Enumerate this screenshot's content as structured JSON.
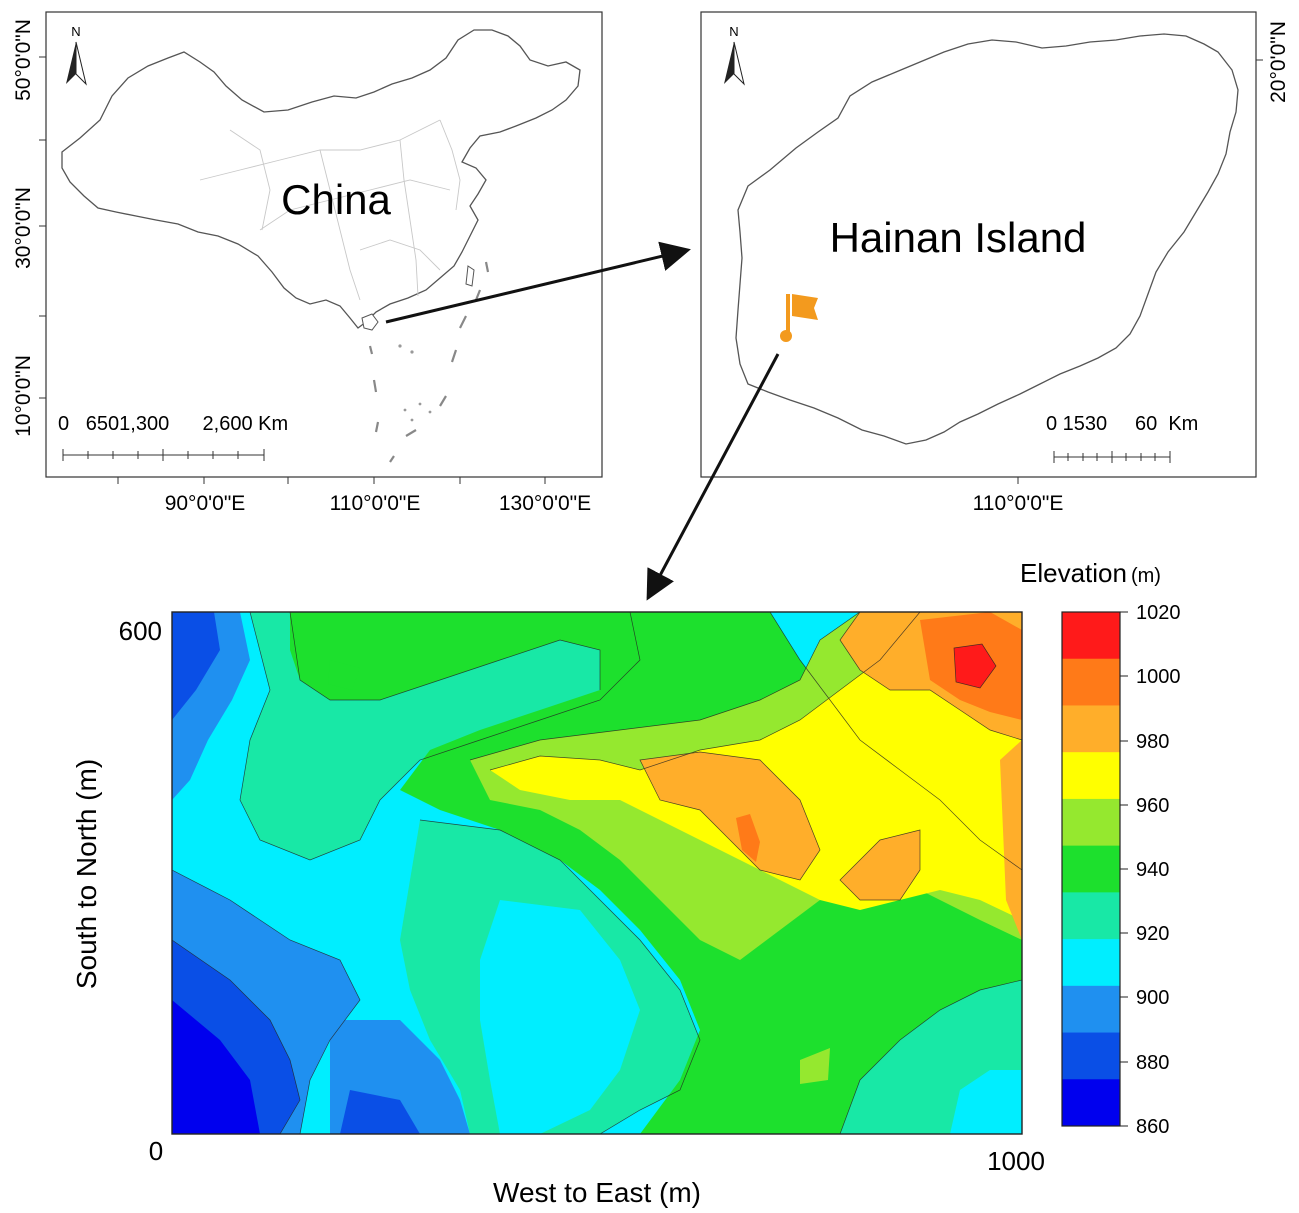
{
  "china_panel": {
    "label": "China",
    "north_label": "N",
    "lat_labels": [
      "50°0'0\"N",
      "30°0'0\"N",
      "10°0'0\"N"
    ],
    "lon_labels": [
      "90°0'0\"E",
      "110°0'0\"E",
      "130°0'0\"E"
    ],
    "scale_label": "0   6501,300      2,600 Km"
  },
  "hainan_panel": {
    "label": "Hainan Island",
    "north_label": "N",
    "lat_labels": [
      "20°0'0\"N"
    ],
    "lon_labels": [
      "110°0'0\"E"
    ],
    "scale_label": "0 1530     60  Km",
    "marker_color": "#f39a1e"
  },
  "elevation_map": {
    "x_axis_label": "West to East (m)",
    "y_axis_label": "South to North (m)",
    "x_ticks": [
      "0",
      "1000"
    ],
    "y_ticks": [
      "600"
    ],
    "legend_title": "Elevation",
    "legend_unit": "(m)",
    "legend_ticks": [
      "1020",
      "1000",
      "980",
      "960",
      "940",
      "920",
      "900",
      "880",
      "860"
    ],
    "color_scale": [
      "#0000ee",
      "#0a4fe6",
      "#1f90f0",
      "#00eeff",
      "#18e8a6",
      "#1de02d",
      "#95e82f",
      "#ffff00",
      "#ffae2a",
      "#ff7a18",
      "#ff1a1a"
    ]
  }
}
